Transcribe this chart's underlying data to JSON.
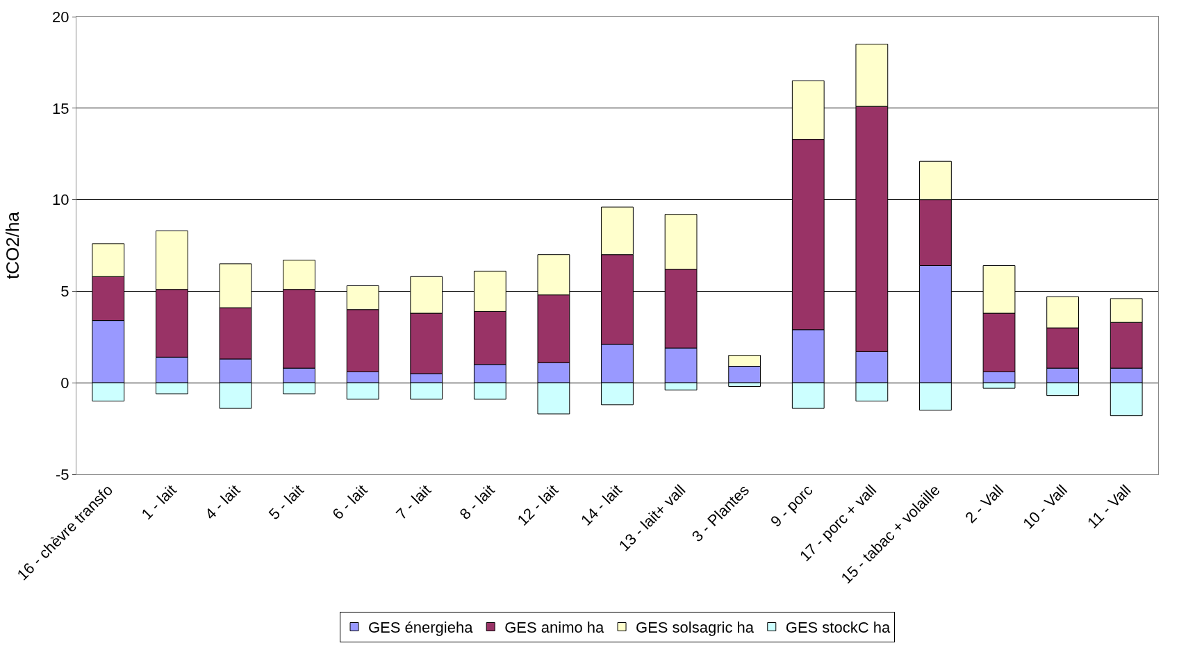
{
  "chart_data": {
    "type": "bar",
    "stacked": true,
    "ylabel": "tCO2/ha",
    "categories": [
      "16 - chèvre transfo",
      "1 - lait",
      "4 - lait",
      "5 - lait",
      "6 - lait",
      "7 - lait",
      "8 - lait",
      "12 - lait",
      "14 - lait",
      "13 - lait+ vall",
      "3 - Plantes",
      "9 - porc",
      "17 - porc + vall",
      "15 - tabac + volaille",
      "2 - Vall",
      "10 - Vall",
      "11 - Vall"
    ],
    "series": [
      {
        "name": "GES énergieha",
        "color": "#9999ff",
        "values": [
          3.4,
          1.4,
          1.3,
          0.8,
          0.6,
          0.5,
          1.0,
          1.1,
          2.1,
          1.9,
          0.9,
          2.9,
          1.7,
          6.4,
          0.6,
          0.8,
          0.8
        ]
      },
      {
        "name": "GES animo ha",
        "color": "#993366",
        "values": [
          2.4,
          3.7,
          2.8,
          4.3,
          3.4,
          3.3,
          2.9,
          3.7,
          4.9,
          4.3,
          0.0,
          10.4,
          13.4,
          3.6,
          3.2,
          2.2,
          2.5
        ]
      },
      {
        "name": "GES solsagric ha",
        "color": "#ffffcc",
        "values": [
          1.8,
          3.2,
          2.4,
          1.6,
          1.3,
          2.0,
          2.2,
          2.2,
          2.6,
          3.0,
          0.6,
          3.2,
          3.4,
          2.1,
          2.6,
          1.7,
          1.3
        ]
      },
      {
        "name": "GES stockC ha",
        "color": "#ccffff",
        "values": [
          -1.0,
          -0.6,
          -1.4,
          -0.6,
          -0.9,
          -0.9,
          -0.9,
          -1.7,
          -1.2,
          -0.4,
          -0.2,
          -1.4,
          -1.0,
          -1.5,
          -0.3,
          -0.7,
          -1.8
        ]
      }
    ],
    "ylim": [
      -5,
      20
    ],
    "yticks": [
      -5,
      0,
      5,
      10,
      15,
      20
    ],
    "grid": "y",
    "legend": "bottom"
  }
}
